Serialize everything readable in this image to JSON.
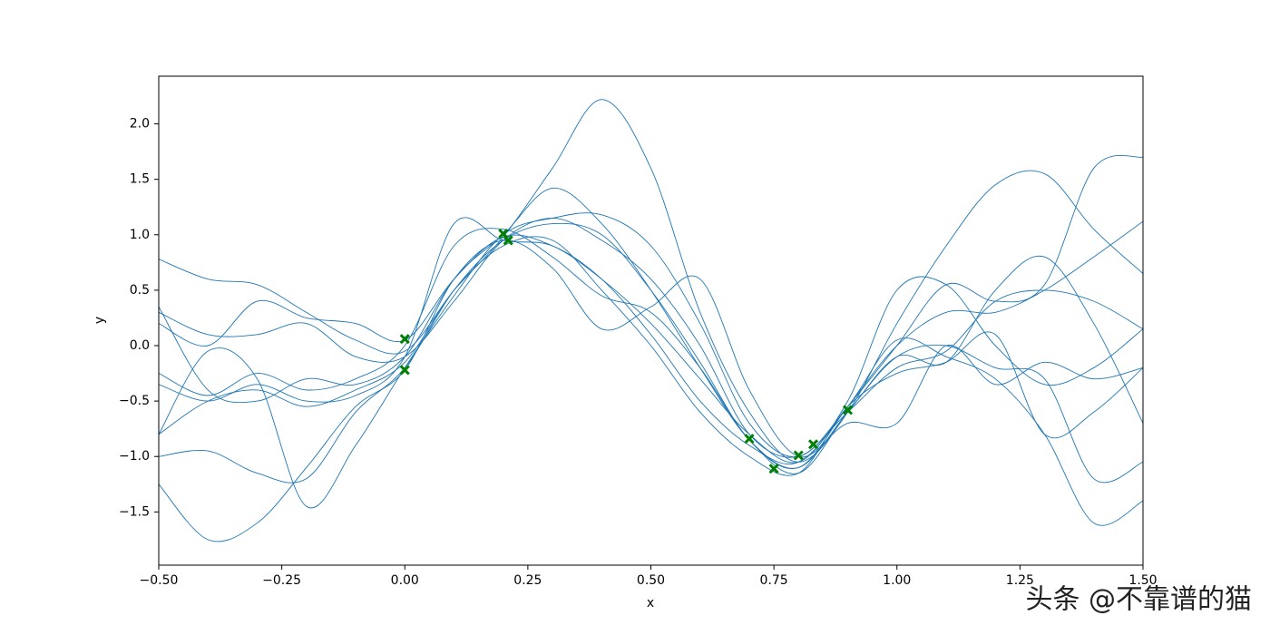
{
  "chart_data": {
    "type": "line",
    "x_label": "x",
    "y_label": "y",
    "xlim": [
      -0.5,
      1.5
    ],
    "ylim": [
      -1.98,
      2.43
    ],
    "xticks": [
      {
        "value": -0.5,
        "label": "−0.50"
      },
      {
        "value": -0.25,
        "label": "−0.25"
      },
      {
        "value": 0,
        "label": "0.00"
      },
      {
        "value": 0.25,
        "label": "0.25"
      },
      {
        "value": 0.5,
        "label": "0.50"
      },
      {
        "value": 0.75,
        "label": "0.75"
      },
      {
        "value": 1,
        "label": "1.00"
      },
      {
        "value": 1.25,
        "label": "1.25"
      },
      {
        "value": 1.5,
        "label": "1.50"
      }
    ],
    "yticks": [
      {
        "value": -1.5,
        "label": "−1.5"
      },
      {
        "value": -1,
        "label": "−1.0"
      },
      {
        "value": -0.5,
        "label": "−0.5"
      },
      {
        "value": 0,
        "label": "0.0"
      },
      {
        "value": 0.5,
        "label": "0.5"
      },
      {
        "value": 1,
        "label": "1.0"
      },
      {
        "value": 1.5,
        "label": "1.5"
      },
      {
        "value": 2,
        "label": "2.0"
      }
    ],
    "x": [
      -0.5,
      -0.4,
      -0.3,
      -0.2,
      -0.1,
      0,
      0.1,
      0.2,
      0.3,
      0.4,
      0.5,
      0.6,
      0.7,
      0.8,
      0.9,
      1.0,
      1.1,
      1.2,
      1.3,
      1.4,
      1.5
    ],
    "series": [
      {
        "color": "#1f77b4",
        "values": [
          0.78,
          0.6,
          0.55,
          0.3,
          0.05,
          -0.05,
          0.5,
          0.98,
          1.6,
          2.22,
          1.6,
          0.3,
          -0.6,
          -1.05,
          -0.6,
          0.2,
          0.9,
          1.45,
          1.55,
          1.05,
          0.65
        ]
      },
      {
        "color": "#1f77b4",
        "values": [
          -0.8,
          -0.05,
          -0.3,
          -1.45,
          -0.9,
          -0.2,
          0.45,
          1.0,
          1.15,
          1.18,
          0.9,
          0.2,
          -0.7,
          -1.0,
          -0.55,
          0.05,
          -0.1,
          -0.3,
          -0.8,
          -1.6,
          -1.4
        ]
      },
      {
        "color": "#1f77b4",
        "values": [
          0.35,
          -0.4,
          -0.5,
          -0.3,
          -0.35,
          -0.1,
          0.6,
          1.0,
          1.42,
          1.1,
          0.5,
          -0.2,
          -0.85,
          -1.1,
          -0.6,
          -0.1,
          -0.15,
          0.5,
          0.8,
          0.2,
          -0.7
        ]
      },
      {
        "color": "#1f77b4",
        "values": [
          -1.25,
          -1.75,
          -1.6,
          -1.1,
          -0.55,
          -0.22,
          0.6,
          0.95,
          0.7,
          0.15,
          0.35,
          0.6,
          -0.4,
          -1.0,
          -0.7,
          -0.7,
          0.0,
          -0.35,
          -0.15,
          -0.3,
          -0.2
        ]
      },
      {
        "color": "#1f77b4",
        "values": [
          0.2,
          0.0,
          0.4,
          0.25,
          0.2,
          0.05,
          0.6,
          0.98,
          0.9,
          0.6,
          0.2,
          -0.3,
          -0.8,
          -1.05,
          -0.55,
          0.0,
          0.55,
          0.4,
          0.55,
          1.6,
          1.7
        ]
      },
      {
        "color": "#1f77b4",
        "values": [
          -0.25,
          -0.45,
          -0.25,
          -0.4,
          -0.3,
          0.0,
          0.9,
          1.05,
          0.8,
          0.45,
          0.3,
          -0.2,
          -0.85,
          -1.15,
          -0.6,
          -0.1,
          0.0,
          -0.2,
          -0.3,
          -1.2,
          -1.05
        ]
      },
      {
        "color": "#1f77b4",
        "values": [
          -1.0,
          -0.95,
          -1.15,
          -1.2,
          -0.6,
          -0.2,
          0.5,
          0.95,
          1.1,
          1.0,
          0.5,
          -0.15,
          -0.85,
          -1.1,
          -0.55,
          0.0,
          0.3,
          0.3,
          0.5,
          0.8,
          1.12
        ]
      },
      {
        "color": "#1f77b4",
        "values": [
          -0.35,
          -0.5,
          -0.35,
          -0.5,
          -0.45,
          -0.1,
          1.1,
          0.95,
          0.9,
          0.6,
          0.1,
          -0.5,
          -0.9,
          -1.05,
          -0.5,
          0.5,
          0.55,
          0.0,
          -0.35,
          -0.2,
          0.15
        ]
      },
      {
        "color": "#1f77b4",
        "values": [
          -0.8,
          -0.5,
          -0.4,
          -0.55,
          -0.4,
          -0.15,
          0.5,
          0.9,
          0.95,
          0.5,
          0.0,
          -0.6,
          -1.0,
          -1.15,
          -0.55,
          -0.25,
          -0.15,
          0.1,
          -0.8,
          -0.6,
          -0.2
        ]
      },
      {
        "color": "#1f77b4",
        "values": [
          0.3,
          0.1,
          0.1,
          0.2,
          -0.1,
          -0.1,
          0.4,
          0.95,
          1.15,
          0.95,
          0.6,
          0.0,
          -0.8,
          -1.0,
          -0.6,
          -0.2,
          -0.05,
          0.4,
          0.5,
          0.4,
          0.15
        ]
      }
    ],
    "points": {
      "type": "scatter",
      "color": "#008000",
      "x": [
        0,
        0,
        0.2,
        0.21,
        0.7,
        0.75,
        0.8,
        0.83,
        0.9
      ],
      "y": [
        0.06,
        -0.22,
        1.01,
        0.95,
        -0.84,
        -1.11,
        -0.99,
        -0.89,
        -0.58
      ]
    }
  },
  "watermark": "头条 @不靠谱的猫"
}
